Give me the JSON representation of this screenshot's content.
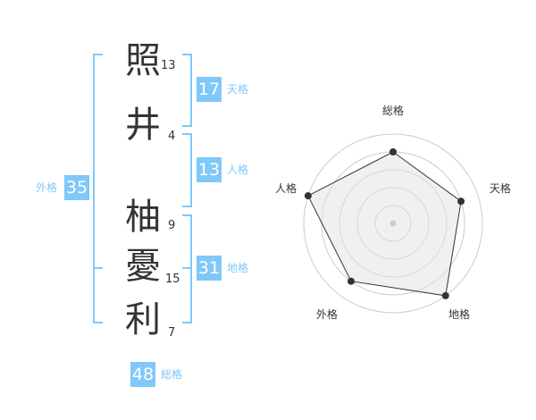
{
  "name": [
    {
      "char": "照",
      "strokes": "13"
    },
    {
      "char": "井",
      "strokes": "4"
    },
    {
      "char": "柚",
      "strokes": "9"
    },
    {
      "char": "憂",
      "strokes": "15"
    },
    {
      "char": "利",
      "strokes": "7"
    }
  ],
  "kaku": {
    "tenkaku": {
      "label": "天格",
      "value": "17"
    },
    "jinkaku": {
      "label": "人格",
      "value": "13"
    },
    "chikaku": {
      "label": "地格",
      "value": "31"
    },
    "gaikaku": {
      "label": "外格",
      "value": "35"
    },
    "soukaku": {
      "label": "総格",
      "value": "48"
    }
  },
  "colors": {
    "accent": "#80c8f8",
    "radar_fill": "#f0f0f0",
    "radar_line": "#333333"
  },
  "chart_data": {
    "type": "radar",
    "axes": [
      "総格",
      "天格",
      "地格",
      "外格",
      "人格"
    ],
    "values": [
      4,
      4,
      5,
      4,
      5
    ],
    "max": 5,
    "rings": 5
  }
}
